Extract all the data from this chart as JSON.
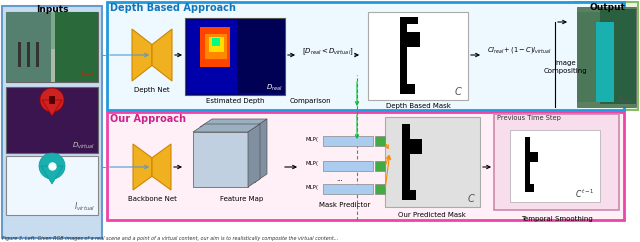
{
  "bg_color": "#ffffff",
  "fig_w": 6.4,
  "fig_h": 2.42,
  "caption": "Figure 3. Left: Given RGB images of a real scene and a point of a virtual content, our aim is to realistically composite the virtual content...",
  "inputs_label": "Inputs",
  "output_label": "Output",
  "depth_title": "Depth Based Approach",
  "our_title": "Our Approach",
  "depth_net_label": "Depth Net",
  "est_depth_label": "Estimated Depth",
  "comparison_label": "Comparison",
  "depth_mask_label": "Depth Based Mask",
  "compositing_label": "Image\nCompositing",
  "backbone_label": "Backbone Net",
  "feature_map_label": "Feature Map",
  "mask_pred_label": "Mask Predictor",
  "our_mask_label": "Our Predicted Mask",
  "temporal_label": "Temporal Smoothing",
  "prev_step_label": "Previous Time Step",
  "comparison_formula": "$[D_{real} < D_{virtual}]$",
  "compositing_formula": "$CI_{real} + (1-C)I_{virtual}$"
}
